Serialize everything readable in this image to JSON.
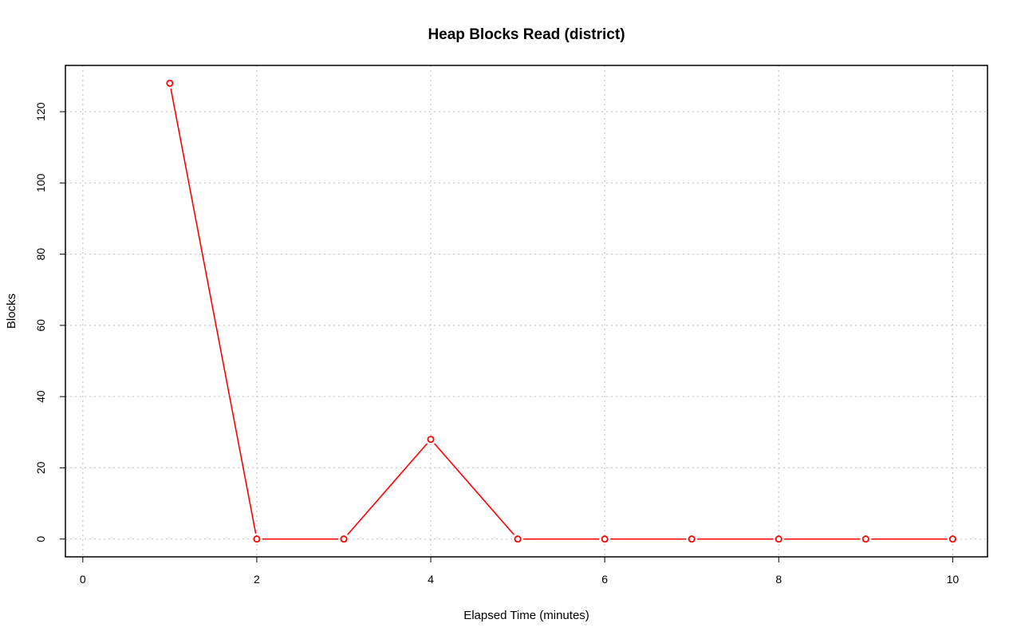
{
  "chart_data": {
    "type": "line",
    "title": "Heap Blocks Read (district)",
    "xlabel": "Elapsed Time (minutes)",
    "ylabel": "Blocks",
    "xlim": [
      -0.2,
      10.4
    ],
    "ylim": [
      -5,
      133
    ],
    "x_ticks": [
      0,
      2,
      4,
      6,
      8,
      10
    ],
    "y_ticks": [
      0,
      20,
      40,
      60,
      80,
      100,
      120
    ],
    "x_tick_labels": [
      "0",
      "2",
      "4",
      "6",
      "8",
      "10"
    ],
    "y_tick_labels": [
      "0",
      "20",
      "40",
      "60",
      "80",
      "100",
      "120"
    ],
    "grid": true,
    "legend": "none",
    "series": [
      {
        "color": "#ff0000",
        "marker": "open-circle",
        "x": [
          1,
          2,
          3,
          4,
          5,
          6,
          7,
          8,
          9,
          10
        ],
        "y": [
          128,
          0,
          0,
          28,
          0,
          0,
          0,
          0,
          0,
          0
        ]
      }
    ]
  }
}
